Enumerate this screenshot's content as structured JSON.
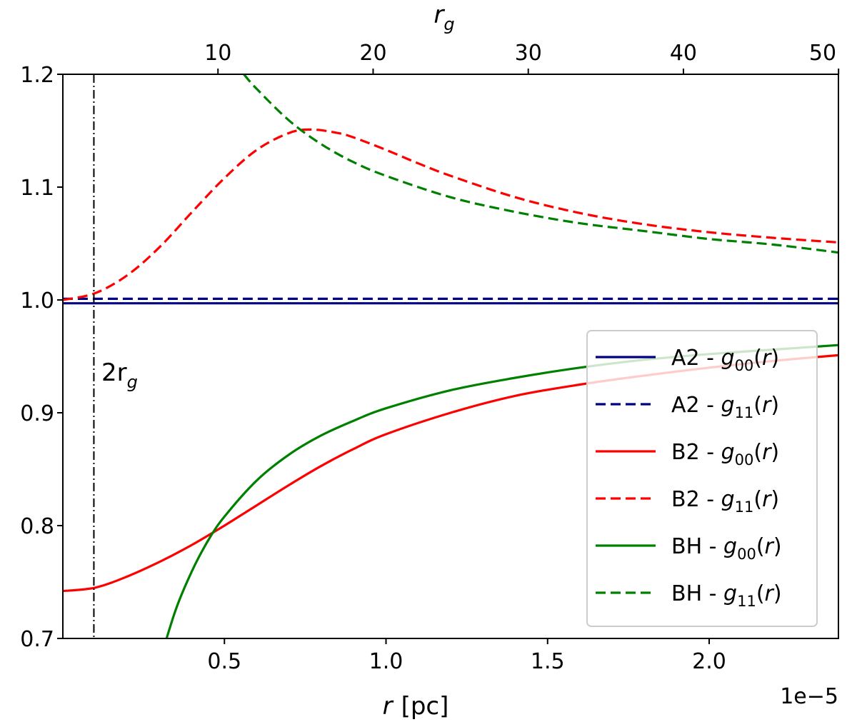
{
  "chart_data": {
    "type": "line",
    "xlabel": "r [pc]",
    "xlabel_r": "r",
    "xlabel_unit": "[pc]",
    "top_xlabel": "r",
    "top_xlabel_sub": "g",
    "offset_text": "1e−5",
    "xlim": [
      0.0,
      2.4
    ],
    "ylim": [
      0.7,
      1.2
    ],
    "x_ticks": [
      0.5,
      1.0,
      1.5,
      2.0
    ],
    "x_tick_labels": [
      "0.5",
      "1.0",
      "1.5",
      "2.0"
    ],
    "y_ticks": [
      0.7,
      0.8,
      0.9,
      1.0,
      1.1,
      1.2
    ],
    "y_tick_labels": [
      "0.7",
      "0.8",
      "0.9",
      "1.0",
      "1.1",
      "1.2"
    ],
    "top_ticks_rg": [
      10,
      20,
      30,
      40,
      50
    ],
    "top_tick_labels": [
      "10",
      "20",
      "30",
      "40",
      "50"
    ],
    "rg_per_unit": 20.83,
    "vline": {
      "x": 0.096,
      "label_main": "2r",
      "label_sub": "g",
      "style": "dashdot"
    },
    "legend": {
      "placement": "right"
    },
    "colors": {
      "A2": "#000080",
      "B2": "#ff0000",
      "BH": "#008000",
      "vline": "#000000"
    },
    "series": [
      {
        "name": "A2 - g00(r)",
        "model": "A2",
        "sub": "00",
        "color": "#000080",
        "dash": "solid",
        "x": [
          0.0,
          2.4
        ],
        "y": [
          0.997,
          0.997
        ]
      },
      {
        "name": "A2 - g11(r)",
        "model": "A2",
        "sub": "11",
        "color": "#000080",
        "dash": "dashed",
        "x": [
          0.0,
          2.4
        ],
        "y": [
          1.001,
          1.001
        ]
      },
      {
        "name": "B2 - g00(r)",
        "model": "B2",
        "sub": "00",
        "color": "#ff0000",
        "dash": "solid",
        "x": [
          0.0,
          0.1,
          0.2,
          0.3,
          0.4,
          0.5,
          0.6,
          0.7,
          0.8,
          0.9,
          1.0,
          1.2,
          1.4,
          1.6,
          1.8,
          2.0,
          2.2,
          2.4
        ],
        "y": [
          0.742,
          0.745,
          0.755,
          0.768,
          0.783,
          0.8,
          0.818,
          0.836,
          0.853,
          0.868,
          0.881,
          0.9,
          0.915,
          0.925,
          0.933,
          0.94,
          0.946,
          0.951
        ]
      },
      {
        "name": "B2 - g11(r)",
        "model": "B2",
        "sub": "11",
        "color": "#ff0000",
        "dash": "dashed",
        "x": [
          0.0,
          0.1,
          0.2,
          0.3,
          0.4,
          0.5,
          0.6,
          0.7,
          0.77,
          0.85,
          0.9,
          1.0,
          1.1,
          1.2,
          1.4,
          1.6,
          1.8,
          2.0,
          2.2,
          2.4
        ],
        "y": [
          1.0,
          1.006,
          1.022,
          1.047,
          1.078,
          1.108,
          1.133,
          1.148,
          1.151,
          1.148,
          1.144,
          1.133,
          1.121,
          1.11,
          1.091,
          1.077,
          1.067,
          1.06,
          1.055,
          1.051
        ]
      },
      {
        "name": "BH - g00(r)",
        "model": "BH",
        "sub": "00",
        "color": "#008000",
        "dash": "solid",
        "x": [
          0.3,
          0.35,
          0.4,
          0.45,
          0.5,
          0.6,
          0.7,
          0.8,
          0.9,
          1.0,
          1.2,
          1.4,
          1.6,
          1.8,
          2.0,
          2.2,
          2.4
        ],
        "y": [
          0.68,
          0.726,
          0.76,
          0.787,
          0.808,
          0.84,
          0.863,
          0.88,
          0.893,
          0.904,
          0.92,
          0.931,
          0.94,
          0.947,
          0.952,
          0.956,
          0.96
        ]
      },
      {
        "name": "BH - g11(r)",
        "model": "BH",
        "sub": "11",
        "color": "#008000",
        "dash": "dashed",
        "x": [
          0.56,
          0.6,
          0.7,
          0.8,
          0.9,
          1.0,
          1.2,
          1.4,
          1.6,
          1.8,
          2.0,
          2.2,
          2.4
        ],
        "y": [
          1.2,
          1.187,
          1.159,
          1.138,
          1.122,
          1.11,
          1.091,
          1.078,
          1.068,
          1.061,
          1.054,
          1.049,
          1.042
        ]
      }
    ]
  }
}
